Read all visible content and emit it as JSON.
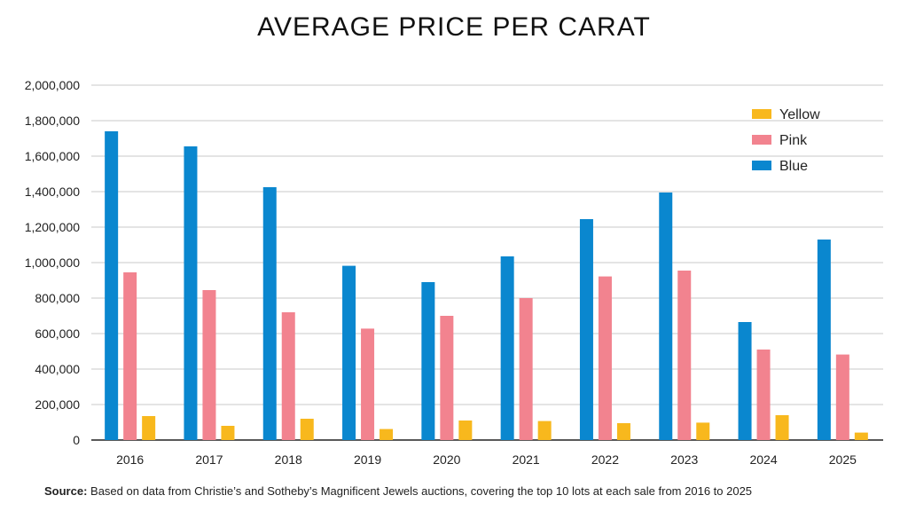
{
  "chart_data": {
    "type": "bar",
    "title": "AVERAGE PRICE PER CARAT",
    "xlabel": "",
    "ylabel": "",
    "categories": [
      "2016",
      "2017",
      "2018",
      "2019",
      "2020",
      "2021",
      "2022",
      "2023",
      "2024",
      "2025"
    ],
    "series": [
      {
        "name": "Blue",
        "color": "#0a87cf",
        "values": [
          1740000,
          1655000,
          1425000,
          982000,
          890000,
          1035000,
          1245000,
          1395000,
          665000,
          1130000
        ]
      },
      {
        "name": "Pink",
        "color": "#f2838f",
        "values": [
          945000,
          845000,
          720000,
          628000,
          700000,
          800000,
          922000,
          955000,
          510000,
          482000
        ]
      },
      {
        "name": "Yellow",
        "color": "#f8b81d",
        "values": [
          135000,
          80000,
          120000,
          62000,
          110000,
          107000,
          95000,
          98000,
          140000,
          42000
        ]
      }
    ],
    "legend_order": [
      "Yellow",
      "Pink",
      "Blue"
    ],
    "legend_position": "top-right",
    "ylim": [
      0,
      2000000
    ],
    "yticks": [
      0,
      200000,
      400000,
      600000,
      800000,
      1000000,
      1200000,
      1400000,
      1600000,
      1800000,
      2000000
    ],
    "ytick_labels": [
      "0",
      "200,000",
      "400,000",
      "600,000",
      "800,000",
      "1,000,000",
      "1,200,000",
      "1,400,000",
      "1,600,000",
      "1,800,000",
      "2,000,000"
    ],
    "grid": true
  },
  "source": {
    "label": "Source:",
    "text": " Based on data from Christie’s and Sotheby’s Magnificent Jewels auctions, covering the top 10 lots at each sale from 2016 to 2025"
  }
}
